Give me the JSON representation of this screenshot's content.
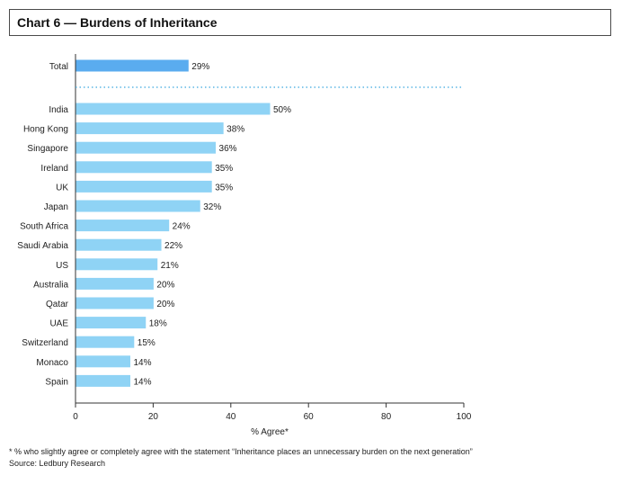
{
  "header": {
    "title": "Chart 6 — Burdens of Inheritance"
  },
  "chart_data": {
    "type": "bar",
    "orientation": "horizontal",
    "title": "Chart 6 — Burdens of Inheritance",
    "xlabel": "% Agree*",
    "ylabel": "",
    "xlim": [
      0,
      100
    ],
    "xticks": [
      "0",
      "20",
      "40",
      "60",
      "80",
      "100"
    ],
    "total": {
      "category": "Total",
      "value": 29,
      "label": "29%",
      "color": "#5aacef"
    },
    "categories": [
      "India",
      "Hong Kong",
      "Singapore",
      "Ireland",
      "UK",
      "Japan",
      "South Africa",
      "Saudi Arabia",
      "US",
      "Australia",
      "Qatar",
      "UAE",
      "Switzerland",
      "Monaco",
      "Spain"
    ],
    "values": [
      50,
      38,
      36,
      35,
      35,
      32,
      24,
      22,
      21,
      20,
      20,
      18,
      15,
      14,
      14
    ],
    "labels": [
      "50%",
      "38%",
      "36%",
      "35%",
      "35%",
      "32%",
      "24%",
      "22%",
      "21%",
      "20%",
      "20%",
      "18%",
      "15%",
      "14%",
      "14%"
    ],
    "bar_color": "#8fd3f5",
    "separator": "dotted",
    "grid": false
  },
  "footnote": "* % who slightly agree or completely agree with the statement “Inheritance places an unnecessary burden on the next generation”",
  "source": "Source: Ledbury Research"
}
